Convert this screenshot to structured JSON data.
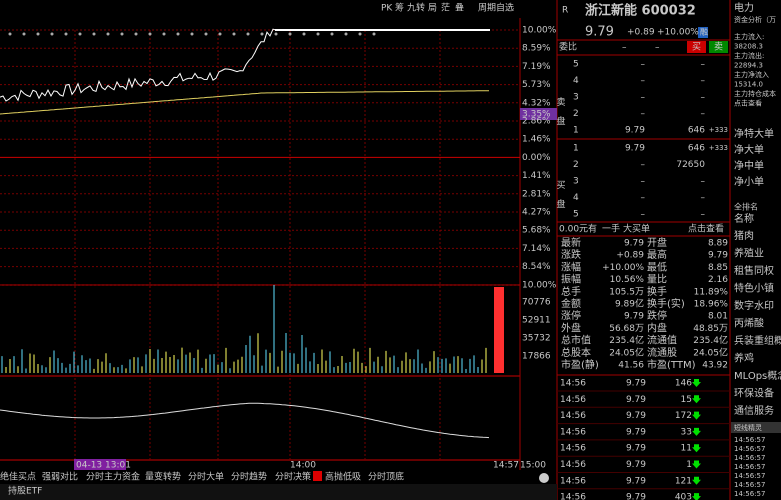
{
  "toolbar": [
    "PK",
    "筹",
    "九转",
    "局",
    "茫",
    "叠",
    "周期自选"
  ],
  "price_axis": [
    "10.00%",
    "8.59%",
    "7.19%",
    "5.73%",
    "4.32%",
    "2.86%",
    "1.46%",
    "0.00%",
    "1.41%",
    "2.81%",
    "4.27%",
    "5.68%",
    "7.14%",
    "8.54%",
    "10.00%"
  ],
  "crosshair_price": "3.35%",
  "crosshair_time": "04-13 13:01",
  "volume_axis": [
    "70776",
    "52911",
    "35732",
    "17866"
  ],
  "time_axis": [
    "14:00",
    "14:57",
    "15:00"
  ],
  "tabs": [
    "绝佳买点",
    "强弱对比",
    "分时主力资金",
    "量变转势",
    "分时大单",
    "分时趋势",
    "分时决策",
    "高抛低吸",
    "分时顶底"
  ],
  "bottom_bar": "持股ETF",
  "quote": {
    "market": "R",
    "name": "浙江新能 600032",
    "price": "9.79",
    "change": "+0.89",
    "change_pct": "+10.00%",
    "badge": "融",
    "ratio_label": "委比",
    "ratio_value": "–",
    "ratio_diff": "–",
    "buy_button": "买",
    "sell_button": "卖",
    "sell_label": "卖盘",
    "buy_label": "买盘",
    "asks": [
      [
        "5",
        "–",
        "–"
      ],
      [
        "4",
        "–",
        "–"
      ],
      [
        "3",
        "–",
        "–"
      ],
      [
        "2",
        "–",
        "–"
      ],
      [
        "1",
        "9.79",
        "646",
        "+333"
      ]
    ],
    "bids": [
      [
        "1",
        "9.79",
        "646",
        "+333"
      ],
      [
        "2",
        "–",
        "72650"
      ],
      [
        "3",
        "–",
        "–"
      ],
      [
        "4",
        "–",
        "–"
      ],
      [
        "5",
        "–",
        "–"
      ]
    ],
    "big_order": [
      "0.00元有",
      "一手",
      "大买单",
      "点击查看"
    ],
    "stats": [
      [
        "最新",
        "9.79",
        "开盘",
        "8.89"
      ],
      [
        "涨跌",
        "+0.89",
        "最高",
        "9.79"
      ],
      [
        "涨幅",
        "+10.00%",
        "最低",
        "8.85"
      ],
      [
        "振幅",
        "10.56%",
        "量比",
        "2.16"
      ],
      [
        "总手",
        "105.5万",
        "换手",
        "11.89%"
      ],
      [
        "金额",
        "9.89亿",
        "换手(实)",
        "18.96%"
      ],
      [
        "涨停",
        "9.79",
        "跌停",
        "8.01"
      ],
      [
        "外盘",
        "56.68万",
        "内盘",
        "48.85万"
      ],
      [
        "总市值",
        "235.4亿",
        "流通值",
        "235.4亿"
      ],
      [
        "总股本",
        "24.05亿",
        "流通股",
        "24.05亿"
      ],
      [
        "市盈(静)",
        "41.56",
        "市盈(TTM)",
        "43.92"
      ]
    ],
    "trades": [
      [
        "14:56",
        "9.79",
        "146"
      ],
      [
        "14:56",
        "9.79",
        "15"
      ],
      [
        "14:56",
        "9.79",
        "172"
      ],
      [
        "14:56",
        "9.79",
        "33"
      ],
      [
        "14:56",
        "9.79",
        "11"
      ],
      [
        "14:56",
        "9.79",
        "1"
      ],
      [
        "14:56",
        "9.79",
        "121"
      ],
      [
        "14:56",
        "9.79",
        "403"
      ]
    ]
  },
  "side": {
    "sector": "电力",
    "fund_title": "资金分析（万",
    "fund": [
      "主力流入:",
      "38208.3",
      "主力流出:",
      "22894.3",
      "主力净流入",
      "15314.0",
      "主力持仓成本",
      "点击查看"
    ],
    "net": [
      "净特大单",
      "净大单",
      "净中单",
      "净小单"
    ],
    "rank": "全排名",
    "name_header": "名称",
    "concepts": [
      "猪肉",
      "养殖业",
      "租售同权",
      "特色小镇",
      "数字水印",
      "丙烯酸",
      "兵装重组概",
      "养鸡",
      "MLOps概念",
      "环保设备",
      "通信服务"
    ],
    "spirit_title": "短线精灵",
    "spirit_times": [
      "14:56:57",
      "14:56:57",
      "14:56:57",
      "14:56:57",
      "14:56:57",
      "14:56:57",
      "14:56:57"
    ]
  }
}
